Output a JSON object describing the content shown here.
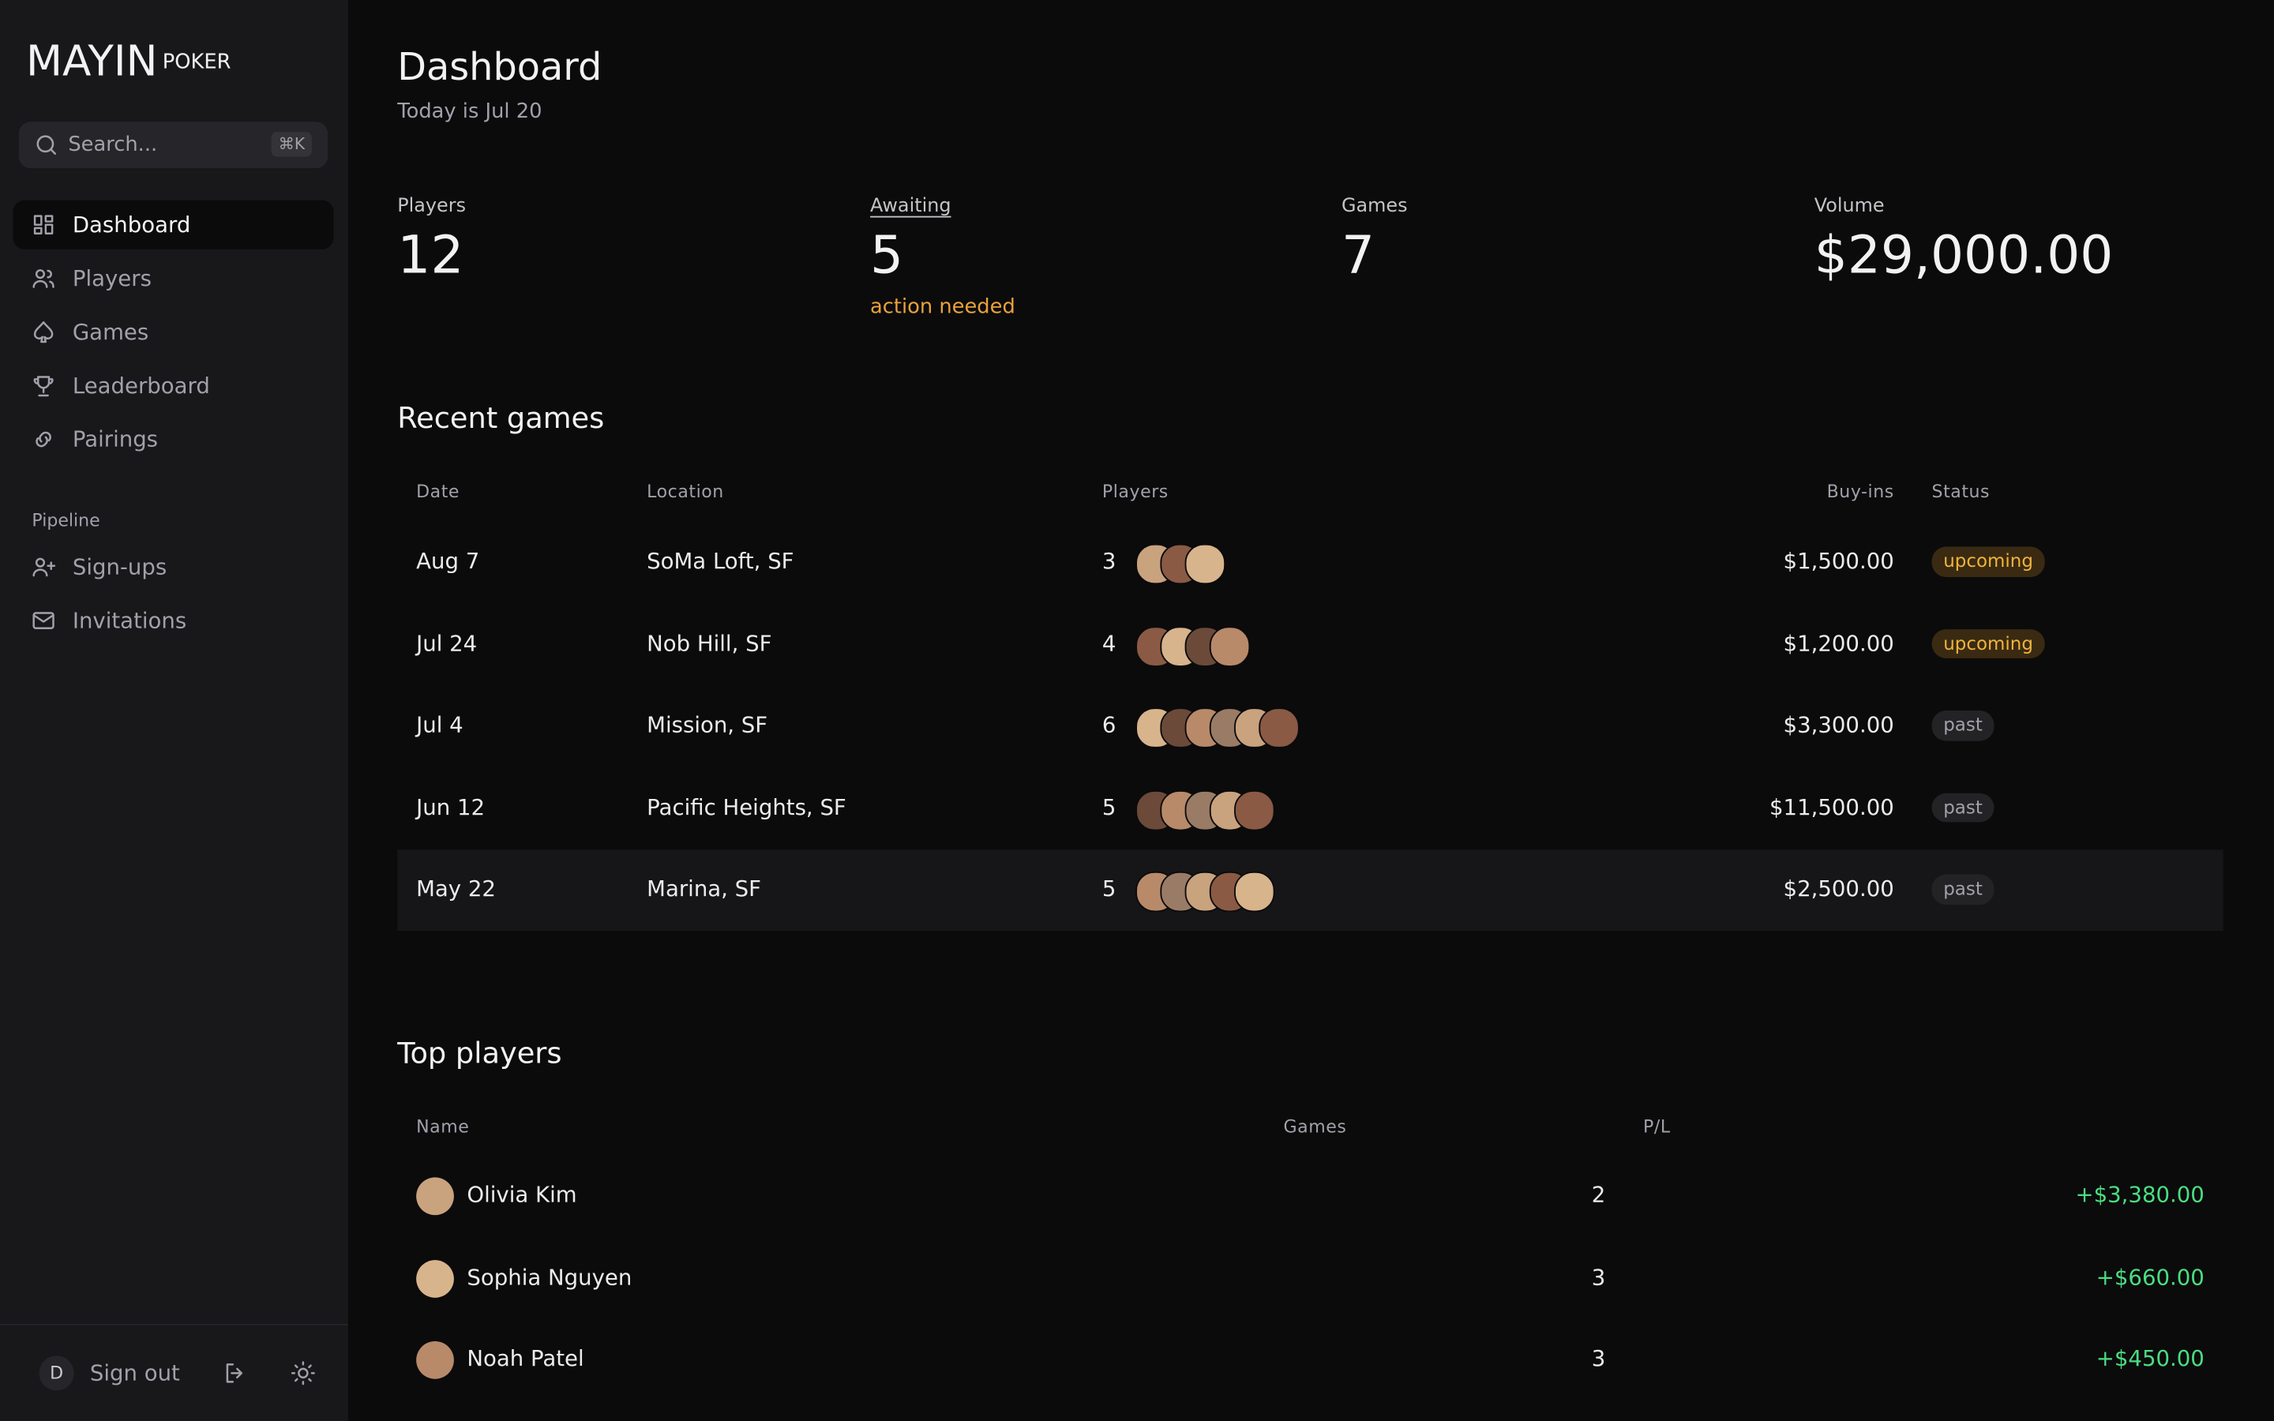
{
  "brand": {
    "name": "MAYIN",
    "sub": "POKER"
  },
  "search": {
    "placeholder": "Search...",
    "shortcut": "⌘K"
  },
  "nav": [
    "Dashboard",
    "Players",
    "Games",
    "Leaderboard",
    "Pairings"
  ],
  "pipeline": {
    "title": "Pipeline",
    "items": [
      "Sign-ups",
      "Invitations"
    ]
  },
  "footer": {
    "avatar": "D",
    "signout": "Sign out"
  },
  "header": {
    "title": "Dashboard",
    "subtitle": "Today is Jul 20"
  },
  "stats": [
    {
      "label": "Players",
      "value": "12"
    },
    {
      "label": "Awaiting",
      "value": "5",
      "note": "action needed"
    },
    {
      "label": "Games",
      "value": "7"
    },
    {
      "label": "Volume",
      "value": "$29,000.00"
    }
  ],
  "recent_games": {
    "title": "Recent games",
    "columns": [
      "Date",
      "Location",
      "Players",
      "Buy-ins",
      "Status"
    ],
    "rows": [
      [
        "Aug 7",
        "SoMa Loft, SF",
        "3",
        "$1,500.00",
        "upcoming"
      ],
      [
        "Jul 24",
        "Nob Hill, SF",
        "4",
        "$1,200.00",
        "upcoming"
      ],
      [
        "Jul 4",
        "Mission, SF",
        "6",
        "$3,300.00",
        "past"
      ],
      [
        "Jun 12",
        "Pacific Heights, SF",
        "5",
        "$11,500.00",
        "past"
      ],
      [
        "May 22",
        "Marina, SF",
        "5",
        "$2,500.00",
        "past"
      ]
    ]
  },
  "top_players": {
    "title": "Top players",
    "columns": [
      "Name",
      "Games",
      "P/L"
    ],
    "rows": [
      [
        "Olivia Kim",
        "2",
        "+$3,380.00"
      ],
      [
        "Sophia Nguyen",
        "3",
        "+$660.00"
      ],
      [
        "Noah Patel",
        "3",
        "+$450.00"
      ]
    ]
  }
}
